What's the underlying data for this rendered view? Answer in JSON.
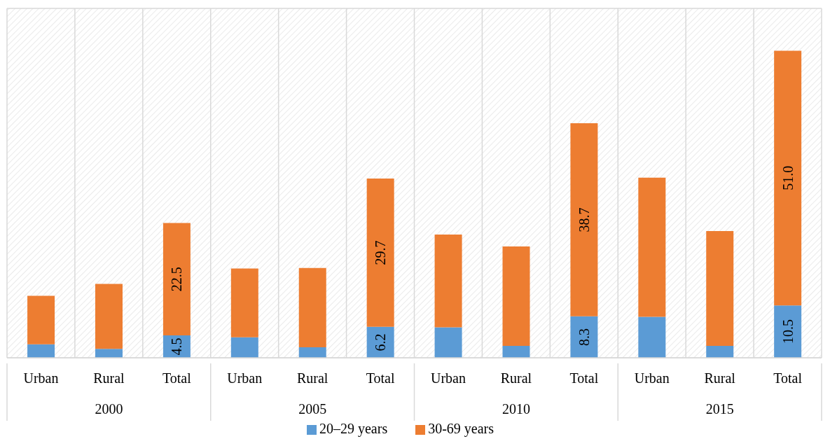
{
  "chart_data": {
    "type": "bar",
    "stacked": true,
    "categories": [
      "Urban",
      "Rural",
      "Total",
      "Urban",
      "Rural",
      "Total",
      "Urban",
      "Rural",
      "Total",
      "Urban",
      "Rural",
      "Total"
    ],
    "series": [
      {
        "name": "20–29 years",
        "color": "#5b9bd5",
        "values": [
          2.7,
          1.8,
          4.5,
          4.1,
          2.1,
          6.2,
          6.1,
          2.4,
          8.3,
          8.2,
          2.4,
          10.5
        ],
        "value_labels": [
          null,
          null,
          "4.5",
          null,
          null,
          "6.2",
          null,
          null,
          "8.3",
          null,
          null,
          "10.5"
        ]
      },
      {
        "name": "30-69 years",
        "color": "#ed7d31",
        "values": [
          9.7,
          13.0,
          22.5,
          13.8,
          15.9,
          29.7,
          18.6,
          19.9,
          38.7,
          27.9,
          23.0,
          51.0
        ],
        "value_labels": [
          null,
          null,
          "22.5",
          null,
          null,
          "29.7",
          null,
          null,
          "38.7",
          null,
          null,
          "51.0"
        ]
      }
    ],
    "annotations": [
      "2000",
      "2005",
      "2010",
      "2015"
    ],
    "ylim": [
      0,
      70
    ],
    "tick_labels": "x",
    "grid": true,
    "legend": "bottom"
  }
}
